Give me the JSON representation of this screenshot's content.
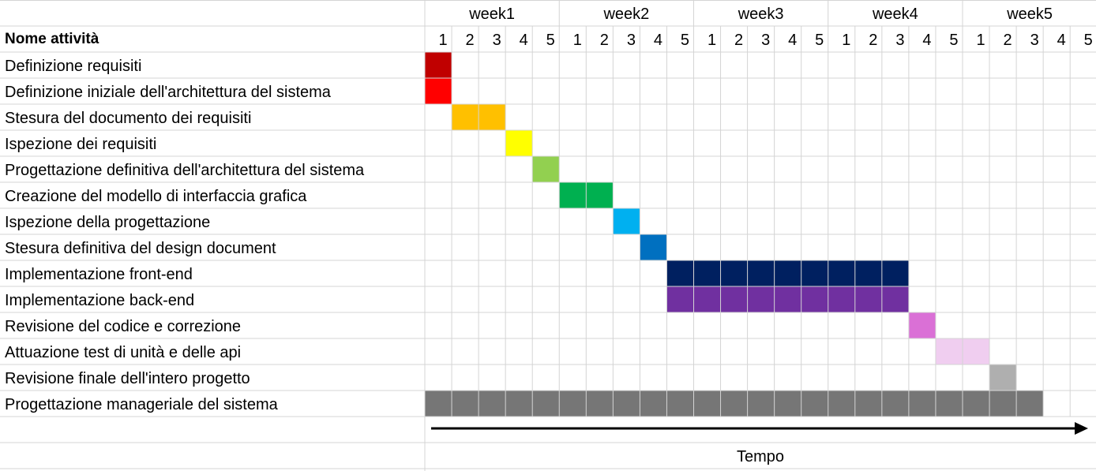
{
  "chart_data": {
    "type": "gantt",
    "header_label": "Nome attività",
    "weeks": [
      "week1",
      "week2",
      "week3",
      "week4",
      "week5"
    ],
    "days": [
      "1",
      "2",
      "3",
      "4",
      "5"
    ],
    "axis_label": "Tempo",
    "tasks": [
      {
        "name": "Definizione requisiti",
        "start": 1,
        "end": 1,
        "color": "#C00000"
      },
      {
        "name": "Definizione iniziale dell'architettura del sistema",
        "start": 1,
        "end": 1,
        "color": "#FF0000"
      },
      {
        "name": "Stesura del documento dei requisiti",
        "start": 2,
        "end": 3,
        "color": "#FFC000"
      },
      {
        "name": "Ispezione dei requisiti",
        "start": 4,
        "end": 4,
        "color": "#FFFF00"
      },
      {
        "name": "Progettazione definitiva dell'architettura del sistema",
        "start": 5,
        "end": 5,
        "color": "#92D050"
      },
      {
        "name": "Creazione del modello di interfaccia grafica",
        "start": 6,
        "end": 7,
        "color": "#00B050"
      },
      {
        "name": "Ispezione della progettazione",
        "start": 8,
        "end": 8,
        "color": "#00B0F0"
      },
      {
        "name": "Stesura definitiva del design document",
        "start": 9,
        "end": 9,
        "color": "#0070C0"
      },
      {
        "name": "Implementazione front-end",
        "start": 10,
        "end": 18,
        "color": "#002060"
      },
      {
        "name": "Implementazione back-end",
        "start": 10,
        "end": 18,
        "color": "#7030A0"
      },
      {
        "name": "Revisione del codice e correzione",
        "start": 19,
        "end": 19,
        "color": "#DA70D6"
      },
      {
        "name": "Attuazione test di unità e delle api",
        "start": 20,
        "end": 21,
        "color": "#F0CEF0"
      },
      {
        "name": "Revisione finale dell'intero progetto",
        "start": 22,
        "end": 22,
        "color": "#AFAFAF"
      },
      {
        "name": "Progettazione manageriale del sistema",
        "start": 1,
        "end": 23,
        "color": "#767676"
      }
    ],
    "grid": true
  }
}
